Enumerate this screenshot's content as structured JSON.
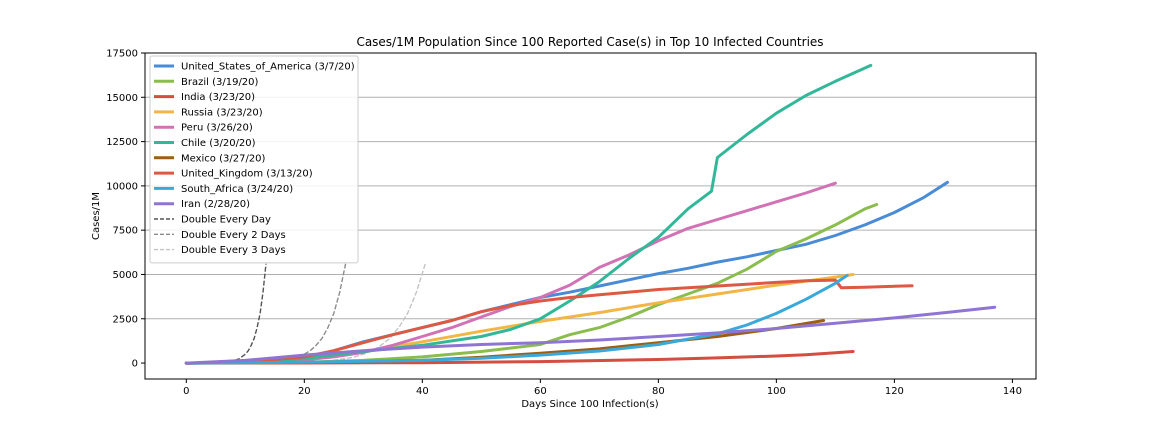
{
  "chart_data": {
    "type": "line",
    "title": "Cases/1M Population Since 100 Reported Case(s) in Top 10 Infected Countries",
    "xlabel": "Days Since 100 Infection(s)",
    "ylabel": "Cases/1M",
    "xlim": [
      -7,
      144
    ],
    "ylim": [
      -900,
      17500
    ],
    "xticks": [
      0,
      20,
      40,
      60,
      80,
      100,
      120,
      140
    ],
    "xtick_labels": [
      "0",
      "20",
      "40",
      "60",
      "80",
      "100",
      "120",
      "140"
    ],
    "yticks": [
      0,
      2500,
      5000,
      7500,
      10000,
      12500,
      15000,
      17500
    ],
    "ytick_labels": [
      "0",
      "2500",
      "5000",
      "7500",
      "10000",
      "12500",
      "15000",
      "17500"
    ],
    "grid": "horizontal",
    "legend_position": "upper-left",
    "series": [
      {
        "name": "United_States_of_America (3/7/20)",
        "color": "#4a8bd6",
        "style": "solid",
        "x": [
          0,
          10,
          20,
          25,
          30,
          35,
          40,
          45,
          50,
          55,
          60,
          65,
          70,
          75,
          80,
          85,
          90,
          95,
          100,
          105,
          110,
          115,
          120,
          125,
          129
        ],
        "y": [
          0,
          50,
          300,
          700,
          1200,
          1600,
          2000,
          2400,
          2900,
          3300,
          3700,
          4000,
          4350,
          4700,
          5050,
          5350,
          5700,
          6000,
          6350,
          6700,
          7200,
          7800,
          8500,
          9350,
          10200
        ]
      },
      {
        "name": "Brazil (3/19/20)",
        "color": "#8bbd4e",
        "style": "solid",
        "x": [
          0,
          10,
          20,
          30,
          40,
          50,
          60,
          65,
          70,
          75,
          80,
          85,
          90,
          95,
          100,
          105,
          110,
          115,
          117
        ],
        "y": [
          0,
          10,
          40,
          150,
          350,
          650,
          1050,
          1600,
          2000,
          2600,
          3300,
          3900,
          4500,
          5300,
          6300,
          7000,
          7800,
          8700,
          8950
        ]
      },
      {
        "name": "India (3/23/20)",
        "color": "#d34d40",
        "style": "solid",
        "x": [
          0,
          20,
          40,
          60,
          80,
          90,
          100,
          105,
          110,
          113
        ],
        "y": [
          0,
          5,
          20,
          80,
          200,
          290,
          400,
          470,
          580,
          650
        ]
      },
      {
        "name": "Russia (3/23/20)",
        "color": "#f2b646",
        "style": "solid",
        "x": [
          0,
          10,
          20,
          30,
          40,
          50,
          60,
          70,
          80,
          90,
          100,
          110,
          113
        ],
        "y": [
          0,
          30,
          200,
          650,
          1200,
          1800,
          2350,
          2850,
          3400,
          3900,
          4400,
          4850,
          5000
        ]
      },
      {
        "name": "Peru (3/26/20)",
        "color": "#d072b4",
        "style": "solid",
        "x": [
          0,
          10,
          20,
          25,
          30,
          35,
          40,
          45,
          50,
          55,
          60,
          65,
          70,
          75,
          80,
          85,
          90,
          95,
          100,
          105,
          110
        ],
        "y": [
          0,
          40,
          180,
          350,
          600,
          1000,
          1500,
          2000,
          2600,
          3200,
          3700,
          4400,
          5400,
          6100,
          6900,
          7600,
          8100,
          8600,
          9100,
          9600,
          10150
        ]
      },
      {
        "name": "Chile (3/20/20)",
        "color": "#32b899",
        "style": "solid",
        "x": [
          0,
          10,
          20,
          30,
          40,
          50,
          55,
          60,
          65,
          70,
          75,
          80,
          85,
          89,
          90,
          95,
          100,
          105,
          110,
          116
        ],
        "y": [
          0,
          50,
          250,
          650,
          1000,
          1500,
          1900,
          2500,
          3500,
          4600,
          5900,
          7100,
          8700,
          9700,
          11600,
          12900,
          14100,
          15100,
          15900,
          16800
        ]
      },
      {
        "name": "Mexico (3/27/20)",
        "color": "#9c5e12",
        "style": "solid",
        "x": [
          0,
          20,
          40,
          50,
          60,
          70,
          80,
          90,
          100,
          108
        ],
        "y": [
          0,
          30,
          150,
          330,
          550,
          800,
          1150,
          1500,
          1950,
          2400
        ]
      },
      {
        "name": "United_Kingdom (3/13/20)",
        "color": "#de5944",
        "style": "solid",
        "x": [
          0,
          10,
          20,
          25,
          30,
          35,
          40,
          45,
          50,
          55,
          60,
          65,
          70,
          80,
          90,
          100,
          105,
          110,
          111,
          115,
          120,
          123
        ],
        "y": [
          0,
          50,
          350,
          700,
          1150,
          1600,
          2000,
          2400,
          2900,
          3250,
          3500,
          3700,
          3850,
          4150,
          4350,
          4550,
          4650,
          4680,
          4250,
          4280,
          4330,
          4360
        ]
      },
      {
        "name": "South_Africa (3/24/20)",
        "color": "#3aa8d9",
        "style": "solid",
        "x": [
          0,
          20,
          40,
          50,
          60,
          70,
          80,
          90,
          95,
          100,
          105,
          110,
          112
        ],
        "y": [
          0,
          40,
          150,
          270,
          450,
          680,
          1050,
          1650,
          2150,
          2800,
          3600,
          4500,
          4950
        ]
      },
      {
        "name": "Iran (2/28/20)",
        "color": "#8f75d3",
        "style": "solid",
        "x": [
          0,
          10,
          20,
          30,
          40,
          50,
          60,
          70,
          80,
          90,
          100,
          110,
          120,
          130,
          137
        ],
        "y": [
          0,
          150,
          450,
          700,
          900,
          1050,
          1150,
          1300,
          1500,
          1700,
          1950,
          2250,
          2550,
          2900,
          3150
        ]
      },
      {
        "name": "Double Every Day",
        "color": "#555555",
        "style": "dashed",
        "x": [
          0,
          2,
          4,
          6,
          7,
          8,
          9,
          10,
          10.5,
          11,
          11.5,
          12,
          12.5,
          13,
          13.5
        ],
        "y": [
          0,
          2,
          8,
          30,
          60,
          120,
          250,
          500,
          700,
          1000,
          1400,
          2000,
          2800,
          4000,
          5600
        ]
      },
      {
        "name": "Double Every 2 Days",
        "color": "#8c8c8c",
        "style": "dashed",
        "x": [
          0,
          4,
          8,
          12,
          14,
          16,
          18,
          19,
          20,
          21,
          22,
          23,
          24,
          25,
          26,
          27
        ],
        "y": [
          0,
          2,
          8,
          30,
          60,
          120,
          250,
          350,
          500,
          700,
          1000,
          1400,
          2000,
          2800,
          4000,
          5600
        ]
      },
      {
        "name": "Double Every 3 Days",
        "color": "#c4c4c4",
        "style": "dashed",
        "x": [
          0,
          6,
          12,
          18,
          21,
          24,
          27,
          28.5,
          30,
          31.5,
          33,
          34.5,
          36,
          37.5,
          39,
          40.5
        ],
        "y": [
          0,
          2,
          8,
          30,
          60,
          120,
          250,
          350,
          500,
          700,
          1000,
          1400,
          2000,
          2800,
          4000,
          5600
        ]
      }
    ]
  }
}
